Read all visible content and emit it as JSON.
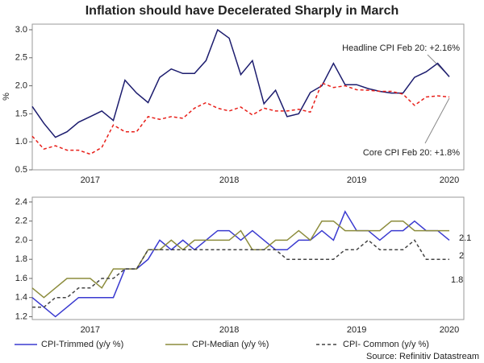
{
  "title": "Inflation should have Decelerated Sharply in March",
  "source": "Source: Refinitiv Datastream",
  "chart_data": [
    {
      "type": "line",
      "ylabel": "%",
      "categories": [
        null,
        null,
        null,
        null,
        null,
        "2017",
        null,
        null,
        null,
        null,
        null,
        null,
        null,
        null,
        null,
        null,
        null,
        "2018",
        null,
        null,
        null,
        null,
        null,
        null,
        null,
        null,
        null,
        null,
        "2019",
        null,
        null,
        null,
        null,
        null,
        null,
        null,
        "2020"
      ],
      "ylim": [
        0.5,
        3.1
      ],
      "yticks": [
        0.5,
        {
          "value": 1,
          "label": "1.0"
        },
        1.5,
        {
          "value": 2,
          "label": "2.0"
        },
        2.5,
        {
          "value": 3,
          "label": "3.0"
        }
      ],
      "series": [
        {
          "name": "Headline CPI",
          "color": "#1c1c6e",
          "dash": false,
          "values": [
            1.63,
            1.33,
            1.08,
            1.18,
            1.35,
            1.45,
            1.55,
            1.38,
            2.1,
            1.87,
            1.7,
            2.15,
            2.3,
            2.22,
            2.22,
            2.45,
            3.0,
            2.85,
            2.2,
            2.45,
            1.68,
            1.92,
            1.45,
            1.5,
            1.88,
            2.0,
            2.4,
            2.02,
            2.02,
            1.95,
            1.9,
            1.87,
            1.87,
            2.15,
            2.25,
            2.4,
            2.16
          ]
        },
        {
          "name": "Core CPI",
          "color": "#e8201a",
          "dash": true,
          "values": [
            1.1,
            0.87,
            0.93,
            0.85,
            0.85,
            0.78,
            0.9,
            1.3,
            1.18,
            1.18,
            1.45,
            1.4,
            1.45,
            1.42,
            1.6,
            1.7,
            1.6,
            1.55,
            1.62,
            1.48,
            1.6,
            1.55,
            1.55,
            1.58,
            1.53,
            2.05,
            1.97,
            2.0,
            1.93,
            1.92,
            1.9,
            1.9,
            1.85,
            1.65,
            1.8,
            1.82,
            1.8
          ]
        }
      ],
      "annotations": [
        "Headline CPI Feb 20: +2.16%",
        "Core CPI Feb 20: +1.8%"
      ]
    },
    {
      "type": "line",
      "categories": [
        null,
        null,
        null,
        null,
        null,
        "2017",
        null,
        null,
        null,
        null,
        null,
        null,
        null,
        null,
        null,
        null,
        null,
        "2018",
        null,
        null,
        null,
        null,
        null,
        null,
        null,
        null,
        null,
        null,
        "2019",
        null,
        null,
        null,
        null,
        null,
        null,
        null,
        "2020"
      ],
      "ylim": [
        1.17,
        2.45
      ],
      "yticks": [
        1.2,
        1.4,
        1.6,
        1.8,
        {
          "value": 2,
          "label": "2.0"
        },
        2.2,
        2.4
      ],
      "legend": "bottom",
      "series": [
        {
          "name": "CPI-Trimmed (y/y %)",
          "color": "#3a3ad0",
          "dash": false,
          "values": [
            1.4,
            1.3,
            1.2,
            1.3,
            1.4,
            1.4,
            1.4,
            1.4,
            1.7,
            1.7,
            1.8,
            2.0,
            1.9,
            2.0,
            1.9,
            2.0,
            2.1,
            2.1,
            2.0,
            2.1,
            2.0,
            1.9,
            1.9,
            2.0,
            2.0,
            2.1,
            2.0,
            2.3,
            2.1,
            2.1,
            2.0,
            2.1,
            2.1,
            2.2,
            2.1,
            2.1,
            2.0
          ]
        },
        {
          "name": "CPI-Median (y/y %)",
          "color": "#8c8c3c",
          "dash": false,
          "values": [
            1.5,
            1.4,
            1.5,
            1.6,
            1.6,
            1.6,
            1.5,
            1.7,
            1.7,
            1.7,
            1.9,
            1.9,
            2.0,
            1.9,
            2.0,
            2.0,
            2.0,
            2.0,
            2.1,
            1.9,
            1.9,
            2.0,
            2.0,
            2.1,
            2.0,
            2.2,
            2.2,
            2.1,
            2.1,
            2.1,
            2.1,
            2.2,
            2.2,
            2.1,
            2.1,
            2.1,
            2.1
          ]
        },
        {
          "name": "CPI- Common (y/y %)",
          "color": "#444444",
          "dash": true,
          "values": [
            1.3,
            1.3,
            1.4,
            1.4,
            1.5,
            1.5,
            1.6,
            1.6,
            1.7,
            1.7,
            1.9,
            1.9,
            1.9,
            1.9,
            1.9,
            1.9,
            1.9,
            1.9,
            1.9,
            1.9,
            1.9,
            1.9,
            1.8,
            1.8,
            1.8,
            1.8,
            1.8,
            1.9,
            1.9,
            2.0,
            1.9,
            1.9,
            1.9,
            2.0,
            1.8,
            1.8,
            1.8
          ]
        }
      ],
      "end_labels": [
        "2.1",
        "2",
        "1.8"
      ]
    }
  ]
}
